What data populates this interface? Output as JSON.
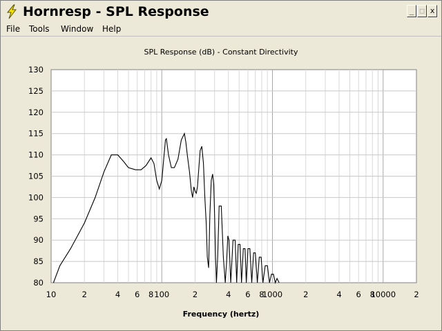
{
  "window": {
    "title": "Hornresp - SPL Response",
    "buttons": {
      "minimize": "_",
      "maximize": "□",
      "close": "x"
    }
  },
  "menu": [
    "File",
    "Tools",
    "Window",
    "Help"
  ],
  "chart_data": {
    "type": "line",
    "title": "SPL Response (dB) - Constant Directivity",
    "xlabel": "Frequency (hertz)",
    "ylabel": "",
    "x_scale": "log",
    "xlim": [
      10,
      20000
    ],
    "ylim": [
      80,
      130
    ],
    "y_ticks": [
      "130",
      "125",
      "120",
      "115",
      "110",
      "105",
      "100",
      "95",
      "90",
      "85",
      "80"
    ],
    "x_tick_labels": [
      {
        "x": 10,
        "label": "10"
      },
      {
        "x": 20,
        "label": "2"
      },
      {
        "x": 40,
        "label": "4"
      },
      {
        "x": 60,
        "label": "6"
      },
      {
        "x": 80,
        "label": "8"
      },
      {
        "x": 100,
        "label": "100"
      },
      {
        "x": 200,
        "label": "2"
      },
      {
        "x": 400,
        "label": "4"
      },
      {
        "x": 600,
        "label": "6"
      },
      {
        "x": 800,
        "label": "8"
      },
      {
        "x": 1000,
        "label": "1000"
      },
      {
        "x": 2000,
        "label": "2"
      },
      {
        "x": 4000,
        "label": "4"
      },
      {
        "x": 6000,
        "label": "6"
      },
      {
        "x": 8000,
        "label": "8"
      },
      {
        "x": 10000,
        "label": "10000"
      },
      {
        "x": 20000,
        "label": "2"
      }
    ],
    "grid": true,
    "series": [
      {
        "x": [
          10.5,
          12,
          15,
          20,
          25,
          30,
          35,
          40,
          45,
          50,
          58,
          65,
          72,
          80,
          85,
          90,
          95,
          100,
          105,
          108,
          110,
          115,
          122,
          130,
          140,
          150,
          160,
          165,
          170,
          178,
          185,
          190,
          195,
          200,
          205,
          210,
          215,
          222,
          230,
          238,
          245,
          252,
          258,
          265,
          272,
          280,
          288,
          295,
          300,
          306,
          312,
          320,
          330,
          345,
          360,
          375,
          385,
          395,
          405,
          420,
          440,
          460,
          475,
          490,
          510,
          525,
          545,
          565,
          580,
          600,
          625,
          650,
          675,
          700,
          730,
          760,
          790,
          820,
          860,
          900,
          940,
          980,
          1020,
          1060,
          1100,
          1150
        ],
        "y": [
          80,
          84,
          88,
          94,
          100,
          106,
          110,
          110,
          108.5,
          107,
          106.5,
          106.5,
          107.5,
          109.3,
          108,
          104,
          102,
          104,
          110,
          113.5,
          113.8,
          110,
          107,
          107,
          109,
          113.5,
          115,
          113,
          110,
          106,
          101.5,
          100,
          102.5,
          101.5,
          101,
          102.5,
          106,
          111,
          112,
          108,
          100,
          94,
          86,
          83.5,
          96,
          104,
          105.5,
          103,
          96,
          86,
          80,
          86,
          98,
          98,
          86,
          80,
          85,
          91,
          90,
          80,
          90,
          90,
          80,
          89,
          89,
          80,
          88,
          88,
          80,
          88,
          88,
          80,
          87,
          87,
          80,
          86,
          86,
          80,
          84,
          84,
          80,
          82,
          82,
          80,
          81,
          80
        ]
      }
    ]
  }
}
